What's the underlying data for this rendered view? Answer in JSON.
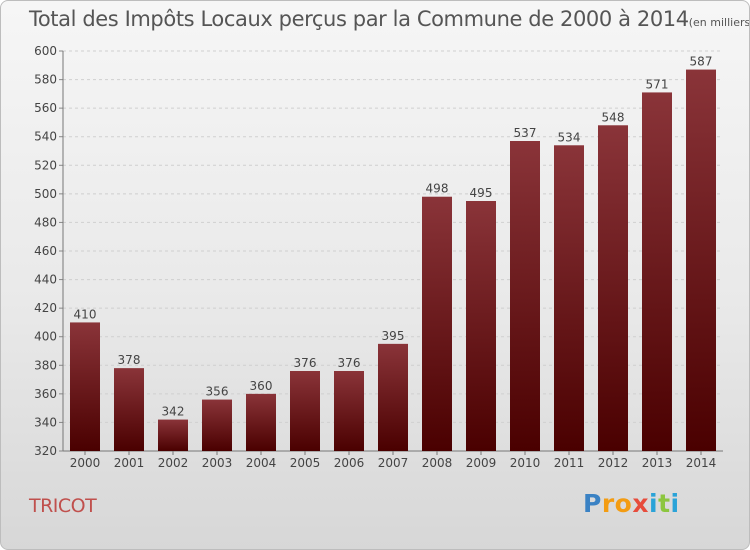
{
  "title": "Total des Impôts Locaux perçus par la Commune de 2000 à 2014",
  "title_unit": "(en milliers d'€)",
  "commune": "TRICOT",
  "brand": {
    "letters": [
      "P",
      "r",
      "o",
      "x",
      "i",
      "t",
      "i"
    ],
    "colors": [
      "#3a82c4",
      "#f39c12",
      "#f39c12",
      "#e74c3c",
      "#2aa3d8",
      "#8cc63f",
      "#2aa3d8"
    ]
  },
  "colors": {
    "bar_top": "#8a3439",
    "bar_bottom": "#4a0000",
    "commune": "#c0504d"
  },
  "chart_data": {
    "type": "bar",
    "categories": [
      "2000",
      "2001",
      "2002",
      "2003",
      "2004",
      "2005",
      "2006",
      "2007",
      "2008",
      "2009",
      "2010",
      "2011",
      "2012",
      "2013",
      "2014"
    ],
    "values": [
      410,
      378,
      342,
      356,
      360,
      376,
      376,
      395,
      498,
      495,
      537,
      534,
      548,
      571,
      587
    ],
    "title": "Total des Impôts Locaux perçus par la Commune de 2000 à 2014",
    "ylim": [
      320,
      600
    ],
    "yticks": [
      320,
      340,
      360,
      380,
      400,
      420,
      440,
      460,
      480,
      500,
      520,
      540,
      560,
      580,
      600
    ],
    "grid": true
  }
}
